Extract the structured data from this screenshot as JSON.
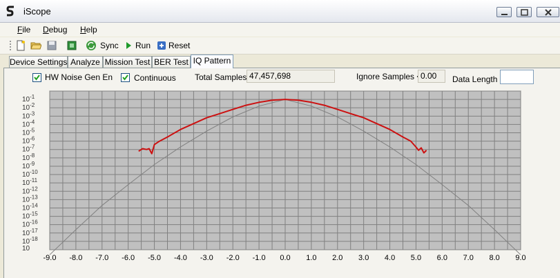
{
  "window": {
    "title": "iScope"
  },
  "menu": [
    {
      "mnemonic": "F",
      "rest": "ile"
    },
    {
      "mnemonic": "D",
      "rest": "ebug"
    },
    {
      "mnemonic": "H",
      "rest": "elp"
    }
  ],
  "toolbar": {
    "sync_label": "Sync",
    "run_label": "Run",
    "reset_label": "Reset"
  },
  "tabs": [
    "Device Settings",
    "Analyze",
    "Mission Test",
    "BER Test",
    "IQ Pattern"
  ],
  "active_tab": "IQ Pattern",
  "controls": {
    "hw_noise_label": "HW Noise Gen En",
    "hw_noise_checked": true,
    "continuous_label": "Continuous",
    "continuous_checked": true,
    "total_samples_label": "Total Samples",
    "total_samples_value": "47,457,698",
    "ignore_samples_label": "Ignore Samples <",
    "ignore_samples_value": "0.00",
    "data_length_label": "Data Length",
    "data_length_value": ""
  },
  "chart_data": {
    "type": "line",
    "x_ticks": [
      "-9.0",
      "-8.0",
      "-7.0",
      "-6.0",
      "-5.0",
      "-4.0",
      "-3.0",
      "-2.0",
      "-1.0",
      "0.0",
      "1.0",
      "2.0",
      "3.0",
      "4.0",
      "5.0",
      "6.0",
      "7.0",
      "8.0",
      "9.0"
    ],
    "xlim": [
      -9,
      9
    ],
    "y_scale": "log",
    "y_tick_exponents": [
      -1,
      -2,
      -3,
      -4,
      -5,
      -6,
      -7,
      -8,
      -9,
      -10,
      -11,
      -12,
      -13,
      -14,
      -15,
      -16,
      -17,
      -18
    ],
    "grid": true,
    "colors": {
      "plot_bg": "#c0c0c0",
      "grid": "#808080",
      "theory": "#808080",
      "measured": "#cc1111"
    },
    "series": [
      {
        "style": "theory",
        "x": [
          -9,
          -8,
          -7,
          -6,
          -5,
          -4,
          -3,
          -2,
          -1,
          0,
          1,
          2,
          3,
          4,
          5,
          6,
          7,
          8,
          9
        ],
        "log10_y": [
          -19.6,
          -16.6,
          -13.7,
          -11.2,
          -8.8,
          -6.7,
          -4.8,
          -3.1,
          -1.8,
          -1.0,
          -1.8,
          -3.1,
          -4.8,
          -6.7,
          -8.8,
          -11.2,
          -13.7,
          -16.6,
          -19.6
        ]
      },
      {
        "style": "measured",
        "x": [
          -5.6,
          -5.45,
          -5.3,
          -5.2,
          -5.1,
          -5.0,
          -4.8,
          -4.5,
          -4.0,
          -3.5,
          -3.0,
          -2.5,
          -2.0,
          -1.5,
          -1.0,
          -0.5,
          0.0,
          0.5,
          1.0,
          1.5,
          2.0,
          2.5,
          3.0,
          3.5,
          4.0,
          4.5,
          4.8,
          5.0,
          5.1,
          5.2,
          5.3,
          5.4
        ],
        "log10_y": [
          -7.2,
          -6.9,
          -7.0,
          -6.9,
          -7.5,
          -6.4,
          -6.0,
          -5.5,
          -4.6,
          -3.9,
          -3.2,
          -2.7,
          -2.2,
          -1.7,
          -1.35,
          -1.1,
          -1.0,
          -1.1,
          -1.35,
          -1.7,
          -2.2,
          -2.7,
          -3.2,
          -3.9,
          -4.6,
          -5.5,
          -6.0,
          -6.7,
          -7.1,
          -6.8,
          -7.4,
          -7.1
        ]
      }
    ]
  }
}
